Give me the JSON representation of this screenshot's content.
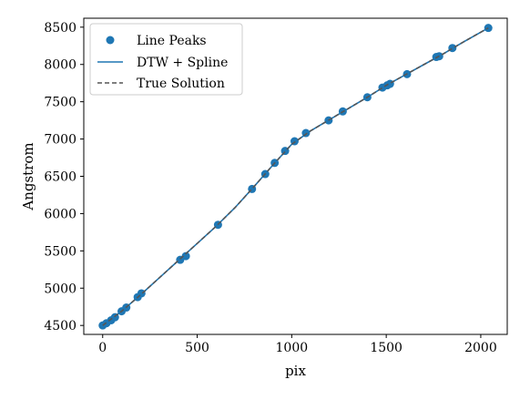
{
  "chart_data": {
    "type": "scatter",
    "xlabel": "pix",
    "ylabel": "Angstrom",
    "xlim": [
      -100,
      2140
    ],
    "ylim": [
      4380,
      8620
    ],
    "xticks": [
      0,
      500,
      1000,
      1500,
      2000
    ],
    "yticks": [
      4500,
      5000,
      5500,
      6000,
      6500,
      7000,
      7500,
      8000,
      8500
    ],
    "xtick_labels": [
      "0",
      "500",
      "1000",
      "1500",
      "2000"
    ],
    "ytick_labels": [
      "4500",
      "5000",
      "5500",
      "6000",
      "6500",
      "7000",
      "7500",
      "8000",
      "8500"
    ],
    "grid": false,
    "legend_position": "top-left",
    "series": [
      {
        "name": "Line Peaks",
        "kind": "points",
        "color": "#1f77b4",
        "x": [
          0,
          20,
          45,
          65,
          100,
          125,
          185,
          205,
          410,
          440,
          610,
          790,
          860,
          910,
          965,
          1015,
          1075,
          1195,
          1270,
          1400,
          1480,
          1505,
          1520,
          1610,
          1765,
          1780,
          1850,
          2040
        ],
        "y": [
          4500,
          4530,
          4570,
          4610,
          4690,
          4740,
          4880,
          4930,
          5380,
          5430,
          5850,
          6330,
          6530,
          6680,
          6840,
          6970,
          7080,
          7250,
          7370,
          7560,
          7690,
          7720,
          7740,
          7870,
          8100,
          8110,
          8220,
          8490
        ]
      },
      {
        "name": "DTW + Spline",
        "kind": "line",
        "color": "#1f77b4",
        "x": [
          0,
          100,
          200,
          300,
          400,
          500,
          600,
          700,
          800,
          900,
          1000,
          1100,
          1200,
          1300,
          1400,
          1500,
          1600,
          1700,
          1800,
          1900,
          2040
        ],
        "y": [
          4500,
          4690,
          4910,
          5140,
          5370,
          5600,
          5830,
          6080,
          6360,
          6650,
          6930,
          7110,
          7260,
          7410,
          7560,
          7720,
          7860,
          8000,
          8140,
          8290,
          8490
        ]
      },
      {
        "name": "True Solution",
        "kind": "dashed-line",
        "color": "#555555",
        "x": [
          0,
          100,
          200,
          300,
          400,
          500,
          600,
          700,
          800,
          900,
          1000,
          1100,
          1200,
          1300,
          1400,
          1500,
          1600,
          1700,
          1800,
          1900,
          2040
        ],
        "y": [
          4500,
          4690,
          4910,
          5140,
          5370,
          5600,
          5830,
          6080,
          6360,
          6650,
          6930,
          7110,
          7260,
          7410,
          7560,
          7720,
          7860,
          8000,
          8140,
          8290,
          8490
        ]
      }
    ]
  }
}
